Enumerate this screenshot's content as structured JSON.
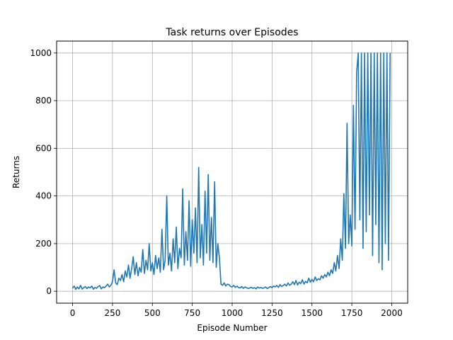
{
  "chart_data": {
    "type": "line",
    "title": "Task returns over Episodes",
    "xlabel": "Episode Number",
    "ylabel": "Returns",
    "xlim": [
      -100,
      2100
    ],
    "ylim": [
      -50,
      1050
    ],
    "xticks": [
      0,
      250,
      500,
      750,
      1000,
      1250,
      1500,
      1750,
      2000
    ],
    "yticks": [
      0,
      200,
      400,
      600,
      800,
      1000
    ],
    "grid": true,
    "legend": "none",
    "series": [
      {
        "color": "#1f77b4",
        "x": [
          0,
          10,
          20,
          30,
          40,
          50,
          60,
          70,
          80,
          90,
          100,
          110,
          120,
          130,
          140,
          150,
          160,
          170,
          180,
          190,
          200,
          210,
          220,
          230,
          240,
          250,
          260,
          270,
          280,
          290,
          300,
          310,
          320,
          330,
          340,
          350,
          360,
          370,
          380,
          390,
          400,
          410,
          420,
          430,
          440,
          450,
          460,
          470,
          480,
          490,
          500,
          510,
          520,
          530,
          540,
          550,
          560,
          570,
          580,
          590,
          600,
          610,
          620,
          630,
          640,
          650,
          660,
          670,
          680,
          690,
          700,
          710,
          720,
          730,
          740,
          750,
          760,
          770,
          780,
          790,
          800,
          810,
          820,
          830,
          840,
          850,
          860,
          870,
          880,
          890,
          900,
          910,
          920,
          930,
          940,
          950,
          960,
          970,
          980,
          990,
          1000,
          1010,
          1020,
          1030,
          1040,
          1050,
          1060,
          1070,
          1080,
          1090,
          1100,
          1110,
          1120,
          1130,
          1140,
          1150,
          1160,
          1170,
          1180,
          1190,
          1200,
          1210,
          1220,
          1230,
          1240,
          1250,
          1260,
          1270,
          1280,
          1290,
          1300,
          1310,
          1320,
          1330,
          1340,
          1350,
          1360,
          1370,
          1380,
          1390,
          1400,
          1410,
          1420,
          1430,
          1440,
          1450,
          1460,
          1470,
          1480,
          1490,
          1500,
          1510,
          1520,
          1530,
          1540,
          1550,
          1560,
          1570,
          1580,
          1590,
          1600,
          1610,
          1620,
          1630,
          1640,
          1650,
          1660,
          1670,
          1680,
          1690,
          1700,
          1710,
          1720,
          1730,
          1740,
          1750,
          1760,
          1770,
          1780,
          1790,
          1800,
          1810,
          1820,
          1830,
          1840,
          1850,
          1860,
          1870,
          1880,
          1890,
          1900,
          1910,
          1920,
          1930,
          1940,
          1950,
          1960,
          1970,
          1980,
          1990
        ],
        "y": [
          12,
          22,
          8,
          18,
          10,
          25,
          9,
          15,
          20,
          11,
          18,
          14,
          22,
          9,
          16,
          12,
          20,
          24,
          10,
          18,
          15,
          22,
          30,
          18,
          25,
          40,
          90,
          35,
          28,
          55,
          45,
          70,
          40,
          85,
          60,
          110,
          55,
          95,
          145,
          70,
          120,
          65,
          100,
          80,
          175,
          75,
          130,
          90,
          200,
          85,
          120,
          70,
          150,
          95,
          140,
          80,
          260,
          90,
          130,
          400,
          110,
          160,
          85,
          220,
          120,
          270,
          95,
          180,
          140,
          430,
          110,
          250,
          130,
          380,
          105,
          300,
          160,
          350,
          120,
          520,
          140,
          280,
          110,
          420,
          160,
          490,
          130,
          310,
          120,
          460,
          100,
          200,
          140,
          30,
          25,
          35,
          22,
          30,
          28,
          20,
          18,
          25,
          16,
          22,
          15,
          14,
          20,
          12,
          18,
          15,
          11,
          14,
          17,
          12,
          15,
          10,
          18,
          13,
          16,
          12,
          14,
          18,
          11,
          16,
          20,
          15,
          22,
          18,
          25,
          16,
          28,
          20,
          24,
          30,
          22,
          35,
          25,
          30,
          40,
          28,
          45,
          26,
          38,
          32,
          48,
          30,
          42,
          35,
          55,
          38,
          50,
          40,
          60,
          45,
          52,
          48,
          65,
          55,
          70,
          60,
          80,
          65,
          90,
          75,
          120,
          85,
          150,
          95,
          220,
          130,
          410,
          180,
          705,
          200,
          320,
          190,
          780,
          260,
          920,
          1000,
          300,
          1000,
          180,
          1000,
          250,
          1000,
          320,
          1000,
          150,
          1000,
          280,
          1000,
          120,
          1000,
          90,
          1000,
          200,
          1000,
          130,
          1000
        ]
      }
    ]
  }
}
